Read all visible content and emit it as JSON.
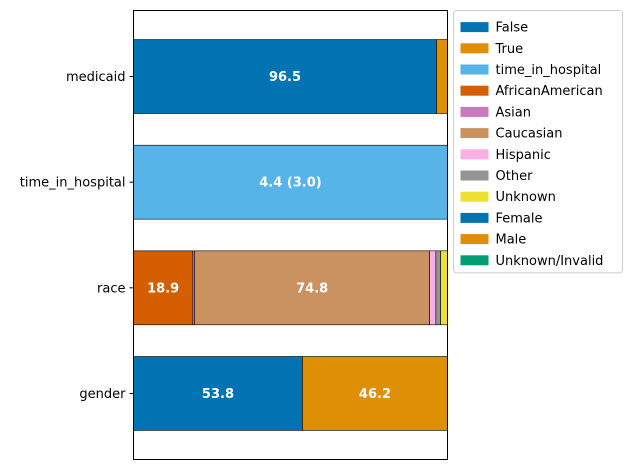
{
  "chart_data": {
    "type": "bar",
    "orientation": "horizontal-stacked-100",
    "xlim": [
      0,
      100
    ],
    "grid": false,
    "legend_placement": "outside-top-right",
    "categories": [
      "medicaid",
      "time_in_hospital",
      "race",
      "gender"
    ],
    "bars": [
      {
        "category": "medicaid",
        "segments": [
          {
            "series": "False",
            "value": 96.5,
            "label": "96.5"
          },
          {
            "series": "True",
            "value": 3.5,
            "label": ""
          }
        ]
      },
      {
        "category": "time_in_hospital",
        "segments": [
          {
            "series": "time_in_hospital",
            "value": 100,
            "label": "4.4 (3.0)"
          }
        ]
      },
      {
        "category": "race",
        "segments": [
          {
            "series": "AfricanAmerican",
            "value": 18.9,
            "label": "18.9"
          },
          {
            "series": "Asian",
            "value": 0.6,
            "label": ""
          },
          {
            "series": "Caucasian",
            "value": 74.8,
            "label": "74.8"
          },
          {
            "series": "Hispanic",
            "value": 2.0,
            "label": ""
          },
          {
            "series": "Other",
            "value": 1.5,
            "label": ""
          },
          {
            "series": "Unknown",
            "value": 2.2,
            "label": ""
          }
        ]
      },
      {
        "category": "gender",
        "segments": [
          {
            "series": "Female",
            "value": 53.8,
            "label": "53.8"
          },
          {
            "series": "Male",
            "value": 46.2,
            "label": "46.2"
          },
          {
            "series": "Unknown/Invalid",
            "value": 0.0,
            "label": ""
          }
        ]
      }
    ],
    "legend": [
      {
        "name": "False",
        "color": "#0173b2"
      },
      {
        "name": "True",
        "color": "#de8f05"
      },
      {
        "name": "time_in_hospital",
        "color": "#56b4e9"
      },
      {
        "name": "AfricanAmerican",
        "color": "#d55e00"
      },
      {
        "name": "Asian",
        "color": "#cc78bc"
      },
      {
        "name": "Caucasian",
        "color": "#ca9161"
      },
      {
        "name": "Hispanic",
        "color": "#fbafe4"
      },
      {
        "name": "Other",
        "color": "#949494"
      },
      {
        "name": "Unknown",
        "color": "#ece133"
      },
      {
        "name": "Female",
        "color": "#0173b2"
      },
      {
        "name": "Male",
        "color": "#de8f05"
      },
      {
        "name": "Unknown/Invalid",
        "color": "#029e73"
      }
    ]
  }
}
